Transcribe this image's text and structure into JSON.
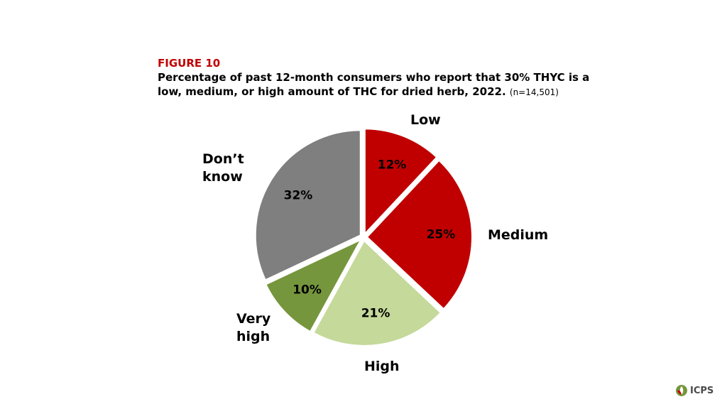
{
  "figure": {
    "label": "FIGURE 10",
    "title": "Percentage of past 12-month consumers who report that 30% THYC is a low, medium, or high amount of THC for dried herb, 2022.",
    "n": "(n=14,501)"
  },
  "logo": {
    "text": "ICPS",
    "icon": "leaf-icon"
  },
  "chart_data": {
    "type": "pie",
    "title": "",
    "slices": [
      {
        "label": "Low",
        "value": 12,
        "value_label": "12%",
        "color": "#c00000"
      },
      {
        "label": "Medium",
        "value": 25,
        "value_label": "25%",
        "color": "#c00000"
      },
      {
        "label": "High",
        "value": 21,
        "value_label": "21%",
        "color": "#c5d99a"
      },
      {
        "label": "Very high",
        "value": 10,
        "value_label": "10%",
        "color": "#76963d"
      },
      {
        "label": "Don’t know",
        "value": 32,
        "value_label": "32%",
        "color": "#7f7f7f"
      }
    ],
    "start_angle_deg": 0,
    "direction": "clockwise",
    "exploded": true
  }
}
